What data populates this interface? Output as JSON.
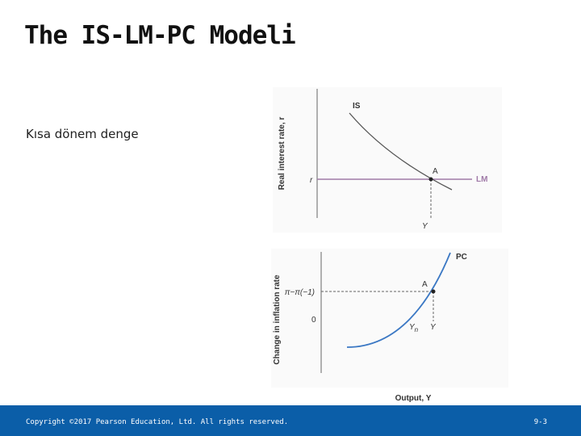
{
  "header": {
    "title": "The IS-LM-PC Modeli"
  },
  "body": {
    "bullet": "Kısa dönem denge"
  },
  "figure": {
    "top": {
      "y_axis_label": "Real interest rate, r",
      "is_label": "IS",
      "lm_label": "LM",
      "point_label": "A",
      "r_label": "r",
      "y_label": "Y"
    },
    "bottom": {
      "y_axis_label": "Change in inflation rate",
      "pc_label": "PC",
      "point_label": "A",
      "gap_label": "π−π(−1)",
      "zero_label": "0",
      "yn_label": {
        "base": "Y",
        "sub": "n"
      },
      "y_label": "Y"
    },
    "x_axis_label": "Output, Y"
  },
  "footer": {
    "copyright": "Copyright ©2017 Pearson Education, Ltd. All rights reserved.",
    "page": "9-3"
  }
}
